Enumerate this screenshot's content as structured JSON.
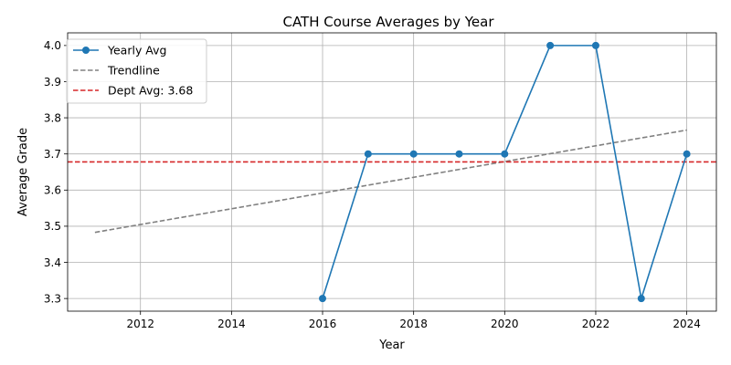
{
  "chart_data": {
    "type": "line",
    "title": "CATH Course Averages by Year",
    "xlabel": "Year",
    "ylabel": "Average Grade",
    "xlim": [
      2010.4,
      2024.65
    ],
    "ylim": [
      3.265,
      4.035
    ],
    "xticks": [
      2012,
      2014,
      2016,
      2018,
      2020,
      2022,
      2024
    ],
    "yticks": [
      3.3,
      3.4,
      3.5,
      3.6,
      3.7,
      3.8,
      3.9,
      4.0
    ],
    "xtick_labels": [
      "2012",
      "2014",
      "2016",
      "2018",
      "2020",
      "2022",
      "2024"
    ],
    "ytick_labels": [
      "3.3",
      "3.4",
      "3.5",
      "3.6",
      "3.7",
      "3.8",
      "3.9",
      "4.0"
    ],
    "grid": true,
    "legend_position": "top-left",
    "series": [
      {
        "name": "Yearly Avg",
        "kind": "line-marker",
        "color": "#1f77b4",
        "x": [
          2016,
          2017,
          2018,
          2019,
          2020,
          2021,
          2022,
          2023,
          2024
        ],
        "y": [
          3.3,
          3.7,
          3.7,
          3.7,
          3.7,
          4.0,
          4.0,
          3.3,
          3.7
        ]
      },
      {
        "name": "Trendline",
        "kind": "dashed-line",
        "color": "#808080",
        "x": [
          2011,
          2024
        ],
        "y": [
          3.483,
          3.766
        ]
      },
      {
        "name": "Dept Avg: 3.68",
        "kind": "hline",
        "color": "#d62728",
        "y": 3.678
      }
    ]
  }
}
